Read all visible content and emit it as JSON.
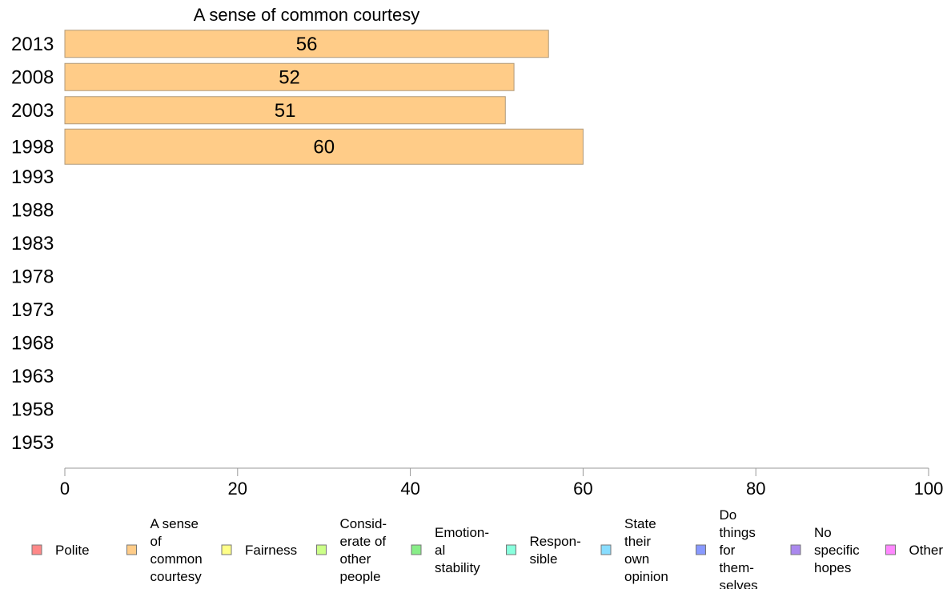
{
  "chart_data": {
    "type": "bar",
    "orientation": "horizontal",
    "title": "A sense of common courtesy",
    "xlabel": "",
    "ylabel": "",
    "categories": [
      "2013",
      "2008",
      "2003",
      "1998",
      "1993",
      "1988",
      "1983",
      "1978",
      "1973",
      "1968",
      "1963",
      "1958",
      "1953"
    ],
    "values": [
      56,
      52,
      51,
      60,
      null,
      null,
      null,
      null,
      null,
      null,
      null,
      null,
      null
    ],
    "xlim": [
      0,
      100
    ],
    "xticks": [
      "0",
      "20",
      "40",
      "60",
      "80",
      "100"
    ],
    "grid": false,
    "bar_color": "#ffcc88",
    "bar_edge_color": "#b09a7a",
    "legend": {
      "placement": "bottom",
      "items": [
        {
          "label": "Polite",
          "color": "#ff8888"
        },
        {
          "label": "A sense of common courtesy",
          "color": "#ffcc88"
        },
        {
          "label": "Fairness",
          "color": "#ffff88"
        },
        {
          "label": "Consid-erate of other people",
          "color": "#ccff88"
        },
        {
          "label": "Emotion-al stability",
          "color": "#88ee88"
        },
        {
          "label": "Respon-sible",
          "color": "#88ffdd"
        },
        {
          "label": "State their own opinion",
          "color": "#88ddff"
        },
        {
          "label": "Do things for them-selves",
          "color": "#8899ff"
        },
        {
          "label": "No specific hopes",
          "color": "#aa88ee"
        },
        {
          "label": "Other",
          "color": "#ff88ff"
        }
      ]
    }
  }
}
